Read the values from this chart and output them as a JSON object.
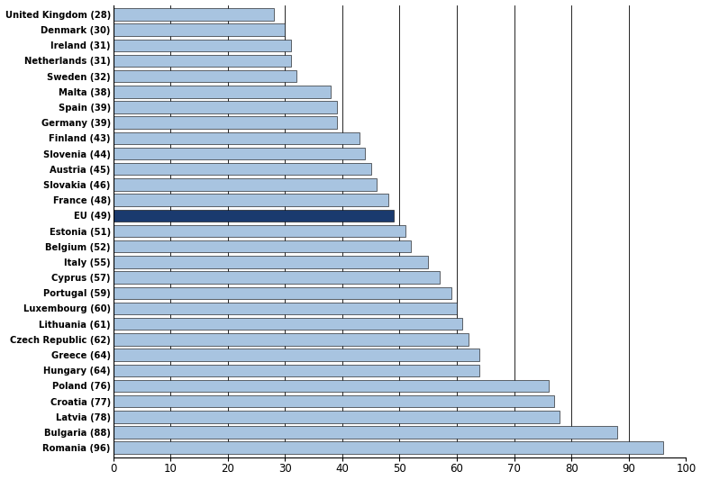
{
  "categories": [
    "United Kingdom (28)",
    "Denmark (30)",
    "Ireland (31)",
    "Netherlands (31)",
    "Sweden (32)",
    "Malta (38)",
    "Spain (39)",
    "Germany (39)",
    "Finland (43)",
    "Slovenia (44)",
    "Austria (45)",
    "Slovakia (46)",
    "France (48)",
    "EU (49)",
    "Estonia (51)",
    "Belgium (52)",
    "Italy (55)",
    "Cyprus (57)",
    "Portugal (59)",
    "Luxembourg (60)",
    "Lithuania (61)",
    "Czech Republic (62)",
    "Greece (64)",
    "Hungary (64)",
    "Poland (76)",
    "Croatia (77)",
    "Latvia (78)",
    "Bulgaria (88)",
    "Romania (96)"
  ],
  "values": [
    28,
    30,
    31,
    31,
    32,
    38,
    39,
    39,
    43,
    44,
    45,
    46,
    48,
    49,
    51,
    52,
    55,
    57,
    59,
    60,
    61,
    62,
    64,
    64,
    76,
    77,
    78,
    88,
    96
  ],
  "bar_color_default": "#a8c4e0",
  "bar_color_eu": "#1a3a6e",
  "eu_index": 13,
  "xlim": [
    0,
    100
  ],
  "xticks": [
    0,
    10,
    20,
    30,
    40,
    50,
    60,
    70,
    80,
    90,
    100
  ],
  "background_color": "#ffffff",
  "grid_color": "#000000",
  "bar_edge_color": "#000000",
  "bar_linewidth": 0.4,
  "label_fontsize": 7.2,
  "tick_fontsize": 8.5
}
